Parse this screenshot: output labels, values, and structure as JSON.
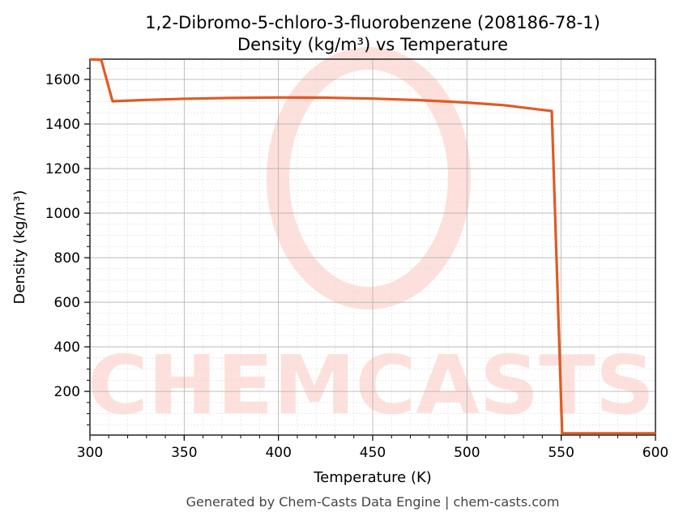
{
  "chart_data": {
    "type": "line",
    "title": "1,2-Dibromo-5-chloro-3-fluorobenzene (208186-78-1)",
    "subtitle": "Density (kg/m³) vs Temperature",
    "xlabel": "Temperature (K)",
    "ylabel": "Density (kg/m³)",
    "xlim": [
      300,
      600
    ],
    "ylim": [
      4,
      1691
    ],
    "xticks": [
      300,
      350,
      400,
      450,
      500,
      550,
      600
    ],
    "yticks": [
      200,
      400,
      600,
      800,
      1000,
      1200,
      1400,
      1600
    ],
    "grid": true,
    "series": [
      {
        "color": "#e05a23",
        "x": [
          300,
          306,
          312,
          330,
          350,
          375,
          400,
          425,
          450,
          475,
          500,
          520,
          545,
          550.5,
          560,
          600
        ],
        "y": [
          1690,
          1688,
          1502,
          1508,
          1513,
          1517,
          1519,
          1518,
          1514,
          1507,
          1496,
          1484,
          1458,
          12,
          12,
          12
        ]
      }
    ]
  },
  "watermark": "CHEMCASTS",
  "footer": "Generated by Chem-Casts Data Engine | chem-casts.com"
}
